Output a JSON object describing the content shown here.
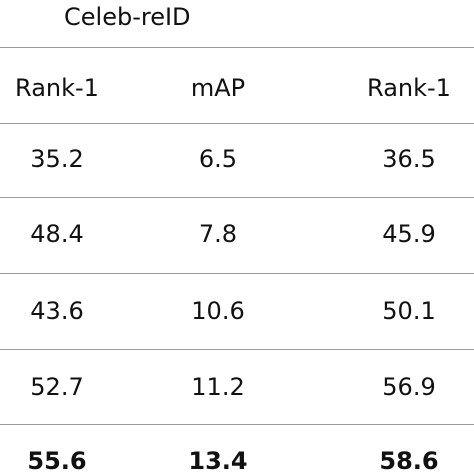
{
  "table": {
    "dataset": "Celeb-reID",
    "headers": [
      "Rank-1",
      "mAP",
      "Rank-1"
    ],
    "rows": [
      [
        "35.2",
        "6.5",
        "36.5"
      ],
      [
        "48.4",
        "7.8",
        "45.9"
      ],
      [
        "43.6",
        "10.6",
        "50.1"
      ],
      [
        "52.7",
        "11.2",
        "56.9"
      ],
      [
        "55.6",
        "13.4",
        "58.6"
      ]
    ]
  }
}
